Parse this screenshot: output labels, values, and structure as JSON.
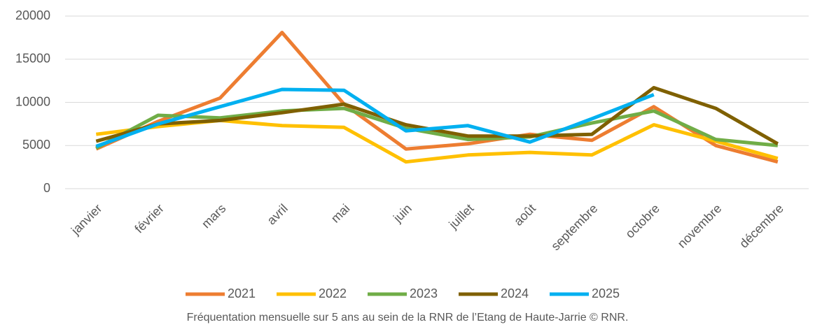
{
  "chart_data": {
    "type": "line",
    "caption": "Fréquentation mensuelle sur 5 ans au sein de la RNR de l’Etang de Haute-Jarrie © RNR.",
    "categories": [
      "janvier",
      "février",
      "mars",
      "avril",
      "mai",
      "juin",
      "juillet",
      "août",
      "septembre",
      "octobre",
      "novembre",
      "décembre"
    ],
    "series": [
      {
        "name": "2021",
        "color": "#ed7d31",
        "values": [
          4600,
          7800,
          10500,
          18100,
          9800,
          4600,
          5200,
          6300,
          5600,
          9500,
          5000,
          3100
        ]
      },
      {
        "name": "2022",
        "color": "#ffc000",
        "values": [
          6300,
          7200,
          7900,
          7300,
          7100,
          3100,
          3900,
          4200,
          3900,
          7400,
          5500,
          3500
        ]
      },
      {
        "name": "2023",
        "color": "#70ad47",
        "values": [
          4700,
          8500,
          8200,
          9000,
          9300,
          7000,
          5700,
          6000,
          7600,
          9000,
          5700,
          5000
        ]
      },
      {
        "name": "2024",
        "color": "#7f6000",
        "values": [
          5500,
          7500,
          7900,
          8800,
          9800,
          7400,
          6100,
          6100,
          6300,
          11700,
          9300,
          5200
        ]
      },
      {
        "name": "2025",
        "color": "#00b0f0",
        "values": [
          4900,
          7500,
          9500,
          11500,
          11400,
          6700,
          7300,
          5400,
          8100,
          10900,
          null,
          null
        ]
      }
    ],
    "ylim": [
      0,
      20000
    ],
    "yticks": [
      0,
      5000,
      10000,
      15000,
      20000
    ],
    "grid": true,
    "legend": "bottom"
  }
}
